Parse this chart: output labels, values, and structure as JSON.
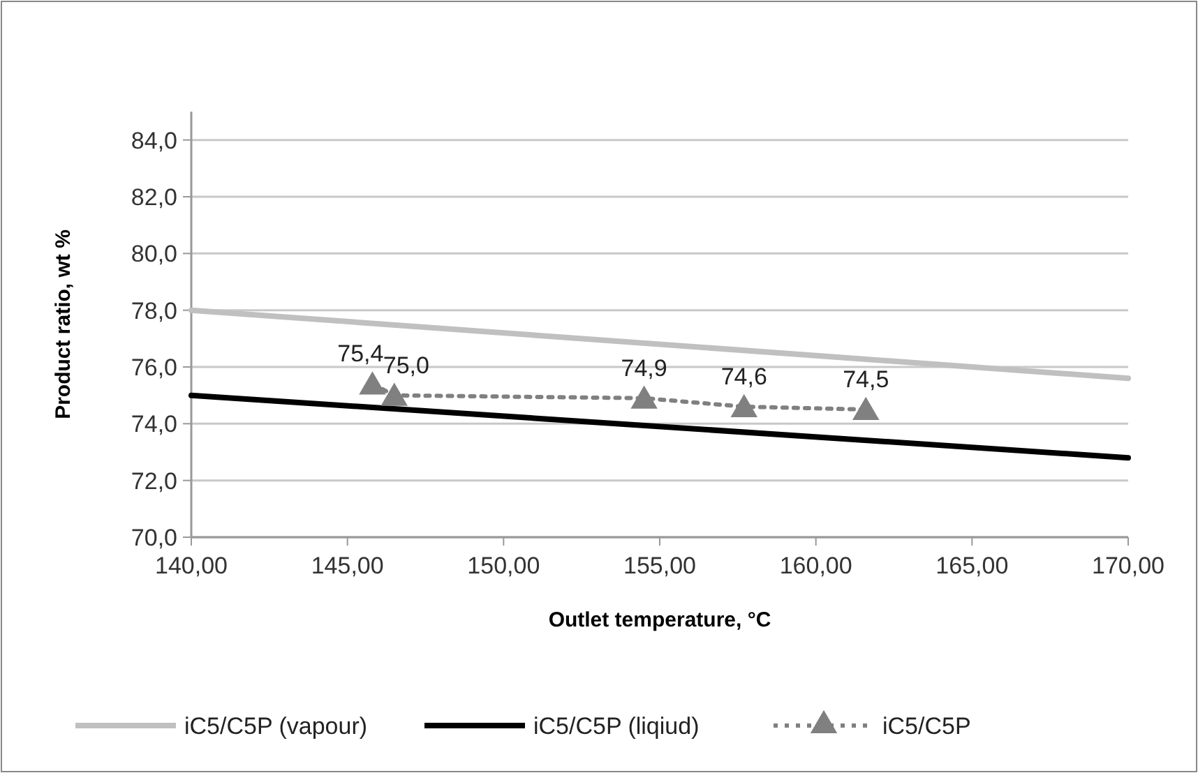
{
  "chart_data": {
    "type": "line",
    "xlabel": "Outlet temperature, °C",
    "ylabel": "Product ratio, wt %",
    "xlim": [
      140,
      170
    ],
    "xticks": [
      {
        "value": 140,
        "label": "140,00"
      },
      {
        "value": 145,
        "label": "145,00"
      },
      {
        "value": 150,
        "label": "150,00"
      },
      {
        "value": 155,
        "label": "155,00"
      },
      {
        "value": 160,
        "label": "160,00"
      },
      {
        "value": 165,
        "label": "165,00"
      },
      {
        "value": 170,
        "label": "170,00"
      }
    ],
    "ylim": [
      70,
      85
    ],
    "yticks": [
      {
        "value": 70,
        "label": "70,0"
      },
      {
        "value": 72,
        "label": "72,0"
      },
      {
        "value": 74,
        "label": "74,0"
      },
      {
        "value": 76,
        "label": "76,0"
      },
      {
        "value": 78,
        "label": "78,0"
      },
      {
        "value": 80,
        "label": "80,0"
      },
      {
        "value": 82,
        "label": "82,0"
      },
      {
        "value": 84,
        "label": "84,0"
      }
    ],
    "grid": "y",
    "legend": "bottom",
    "series": [
      {
        "name": "iC5/C5P (vapour)",
        "color": "#c0c0c0",
        "x": [
          140,
          170
        ],
        "values": [
          78.0,
          75.6
        ],
        "line_style": "solid",
        "marker": "none"
      },
      {
        "name": "iC5/C5P (liqiud)",
        "color": "#000000",
        "x": [
          140,
          170
        ],
        "values": [
          75.0,
          72.8
        ],
        "line_style": "solid",
        "marker": "none"
      },
      {
        "name": "iC5/C5P",
        "color": "#808080",
        "x": [
          145.8,
          146.5,
          154.5,
          157.7,
          161.6
        ],
        "values": [
          75.4,
          75.0,
          74.9,
          74.6,
          74.5
        ],
        "value_labels": [
          "75,4",
          "75,0",
          "74,9",
          "74,6",
          "74,5"
        ],
        "line_style": "dotted",
        "marker": "triangle"
      }
    ]
  }
}
